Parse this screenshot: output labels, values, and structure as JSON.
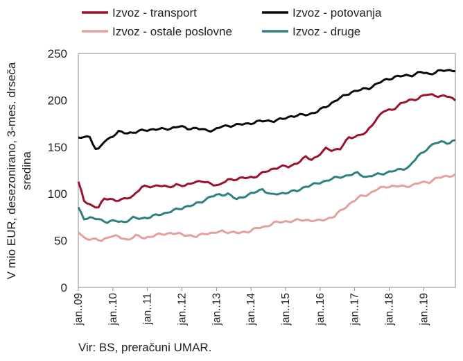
{
  "chart_data": {
    "type": "line",
    "ylabel_lines": [
      "V mio EUR, desezonirano, 3-mes. drseča",
      "sredina"
    ],
    "ylim": [
      0,
      250
    ],
    "yticks": [
      0,
      50,
      100,
      150,
      200,
      250
    ],
    "x_start": "2009-01",
    "x_end": "2019-12",
    "xtick_labels": [
      "jan..09",
      "jan..10",
      "jan..11",
      "jan..12",
      "jan..13",
      "jan..14",
      "jan..15",
      "jan..16",
      "jan..17",
      "jan..18",
      "jan..19"
    ],
    "grid": false,
    "legend_position": "top",
    "source": "Vir: BS, preračuni UMAR.",
    "series": [
      {
        "name": "Izvoz - transport",
        "color": "#9b1230",
        "anchors": [
          [
            "2009-01",
            113
          ],
          [
            "2009-03",
            92
          ],
          [
            "2009-06",
            87
          ],
          [
            "2009-08",
            86
          ],
          [
            "2009-10",
            94
          ],
          [
            "2009-12",
            95
          ],
          [
            "2010-02",
            93
          ],
          [
            "2010-05",
            94
          ],
          [
            "2010-08",
            98
          ],
          [
            "2010-11",
            107
          ],
          [
            "2011-02",
            108
          ],
          [
            "2011-05",
            109
          ],
          [
            "2011-08",
            107
          ],
          [
            "2011-11",
            110
          ],
          [
            "2012-02",
            108
          ],
          [
            "2012-05",
            113
          ],
          [
            "2012-08",
            113
          ],
          [
            "2012-11",
            111
          ],
          [
            "2013-02",
            109
          ],
          [
            "2013-05",
            115
          ],
          [
            "2013-08",
            116
          ],
          [
            "2013-11",
            117
          ],
          [
            "2014-02",
            118
          ],
          [
            "2014-05",
            122
          ],
          [
            "2014-08",
            126
          ],
          [
            "2014-11",
            129
          ],
          [
            "2015-02",
            129
          ],
          [
            "2015-05",
            133
          ],
          [
            "2015-08",
            139
          ],
          [
            "2015-10",
            137
          ],
          [
            "2015-12",
            140
          ],
          [
            "2016-03",
            148
          ],
          [
            "2016-05",
            147
          ],
          [
            "2016-08",
            148
          ],
          [
            "2016-11",
            160
          ],
          [
            "2017-02",
            162
          ],
          [
            "2017-05",
            165
          ],
          [
            "2017-08",
            178
          ],
          [
            "2017-11",
            188
          ],
          [
            "2018-02",
            190
          ],
          [
            "2018-05",
            196
          ],
          [
            "2018-08",
            200
          ],
          [
            "2018-11",
            202
          ],
          [
            "2019-02",
            206
          ],
          [
            "2019-04",
            206
          ],
          [
            "2019-07",
            204
          ],
          [
            "2019-10",
            204
          ],
          [
            "2019-12",
            200
          ]
        ]
      },
      {
        "name": "Izvoz - potovanja",
        "color": "#0a0a0a",
        "anchors": [
          [
            "2009-01",
            159
          ],
          [
            "2009-03",
            161
          ],
          [
            "2009-05",
            161
          ],
          [
            "2009-07",
            148
          ],
          [
            "2009-08",
            147
          ],
          [
            "2009-10",
            156
          ],
          [
            "2009-12",
            160
          ],
          [
            "2010-03",
            166
          ],
          [
            "2010-06",
            165
          ],
          [
            "2010-09",
            166
          ],
          [
            "2010-12",
            168
          ],
          [
            "2011-03",
            169
          ],
          [
            "2011-06",
            169
          ],
          [
            "2011-09",
            170
          ],
          [
            "2011-12",
            172
          ],
          [
            "2012-03",
            170
          ],
          [
            "2012-06",
            170
          ],
          [
            "2012-09",
            168
          ],
          [
            "2012-12",
            168
          ],
          [
            "2013-03",
            172
          ],
          [
            "2013-06",
            173
          ],
          [
            "2013-09",
            174
          ],
          [
            "2013-12",
            175
          ],
          [
            "2014-03",
            177
          ],
          [
            "2014-06",
            178
          ],
          [
            "2014-09",
            178
          ],
          [
            "2014-12",
            180
          ],
          [
            "2015-03",
            183
          ],
          [
            "2015-06",
            184
          ],
          [
            "2015-09",
            185
          ],
          [
            "2015-12",
            188
          ],
          [
            "2016-03",
            193
          ],
          [
            "2016-06",
            199
          ],
          [
            "2016-09",
            204
          ],
          [
            "2016-12",
            209
          ],
          [
            "2017-03",
            211
          ],
          [
            "2017-06",
            213
          ],
          [
            "2017-09",
            218
          ],
          [
            "2017-12",
            222
          ],
          [
            "2018-03",
            225
          ],
          [
            "2018-06",
            226
          ],
          [
            "2018-09",
            227
          ],
          [
            "2018-12",
            230
          ],
          [
            "2019-03",
            228
          ],
          [
            "2019-06",
            231
          ],
          [
            "2019-09",
            232
          ],
          [
            "2019-12",
            232
          ]
        ]
      },
      {
        "name": "Izvoz - ostale poslovne",
        "color": "#e3a09f",
        "anchors": [
          [
            "2009-01",
            59
          ],
          [
            "2009-03",
            53
          ],
          [
            "2009-05",
            52
          ],
          [
            "2009-07",
            51
          ],
          [
            "2009-09",
            50
          ],
          [
            "2009-12",
            55
          ],
          [
            "2010-03",
            54
          ],
          [
            "2010-06",
            51
          ],
          [
            "2010-09",
            55
          ],
          [
            "2010-12",
            53
          ],
          [
            "2011-03",
            55
          ],
          [
            "2011-06",
            57
          ],
          [
            "2011-09",
            58
          ],
          [
            "2011-12",
            57
          ],
          [
            "2012-03",
            56
          ],
          [
            "2012-06",
            54
          ],
          [
            "2012-09",
            58
          ],
          [
            "2012-12",
            58
          ],
          [
            "2013-03",
            60
          ],
          [
            "2013-06",
            59
          ],
          [
            "2013-09",
            58
          ],
          [
            "2013-12",
            60
          ],
          [
            "2014-03",
            63
          ],
          [
            "2014-06",
            65
          ],
          [
            "2014-09",
            69
          ],
          [
            "2014-12",
            70
          ],
          [
            "2015-03",
            71
          ],
          [
            "2015-06",
            72
          ],
          [
            "2015-09",
            72
          ],
          [
            "2015-12",
            71
          ],
          [
            "2016-03",
            73
          ],
          [
            "2016-06",
            76
          ],
          [
            "2016-09",
            84
          ],
          [
            "2016-12",
            91
          ],
          [
            "2017-03",
            97
          ],
          [
            "2017-06",
            100
          ],
          [
            "2017-09",
            105
          ],
          [
            "2017-12",
            108
          ],
          [
            "2018-03",
            108
          ],
          [
            "2018-06",
            108
          ],
          [
            "2018-09",
            109
          ],
          [
            "2018-12",
            112
          ],
          [
            "2019-03",
            113
          ],
          [
            "2019-06",
            117
          ],
          [
            "2019-09",
            119
          ],
          [
            "2019-12",
            120
          ]
        ]
      },
      {
        "name": "Izvoz - druge",
        "color": "#2e7f7f",
        "anchors": [
          [
            "2009-01",
            85
          ],
          [
            "2009-03",
            74
          ],
          [
            "2009-05",
            74
          ],
          [
            "2009-08",
            73
          ],
          [
            "2009-11",
            70
          ],
          [
            "2010-02",
            71
          ],
          [
            "2010-05",
            70
          ],
          [
            "2010-08",
            74
          ],
          [
            "2010-11",
            74
          ],
          [
            "2011-02",
            75
          ],
          [
            "2011-05",
            78
          ],
          [
            "2011-08",
            80
          ],
          [
            "2011-11",
            83
          ],
          [
            "2012-02",
            86
          ],
          [
            "2012-05",
            88
          ],
          [
            "2012-08",
            92
          ],
          [
            "2012-11",
            97
          ],
          [
            "2013-02",
            99
          ],
          [
            "2013-05",
            100
          ],
          [
            "2013-08",
            94
          ],
          [
            "2013-11",
            98
          ],
          [
            "2014-02",
            101
          ],
          [
            "2014-05",
            105
          ],
          [
            "2014-08",
            99
          ],
          [
            "2014-11",
            100
          ],
          [
            "2015-02",
            102
          ],
          [
            "2015-05",
            103
          ],
          [
            "2015-08",
            108
          ],
          [
            "2015-11",
            110
          ],
          [
            "2016-02",
            113
          ],
          [
            "2016-05",
            116
          ],
          [
            "2016-08",
            118
          ],
          [
            "2016-11",
            120
          ],
          [
            "2017-02",
            122
          ],
          [
            "2017-05",
            118
          ],
          [
            "2017-08",
            120
          ],
          [
            "2017-11",
            122
          ],
          [
            "2018-02",
            124
          ],
          [
            "2018-05",
            126
          ],
          [
            "2018-08",
            129
          ],
          [
            "2018-11",
            140
          ],
          [
            "2019-02",
            148
          ],
          [
            "2019-05",
            154
          ],
          [
            "2019-08",
            156
          ],
          [
            "2019-10",
            154
          ],
          [
            "2019-12",
            157
          ]
        ]
      }
    ]
  }
}
